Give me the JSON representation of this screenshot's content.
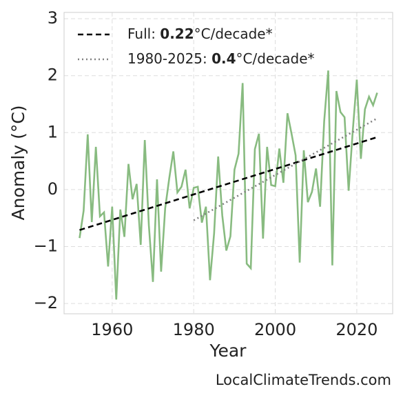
{
  "chart_data": {
    "type": "line",
    "xlabel": "Year",
    "ylabel": "Anomaly (°C)",
    "source": "LocalClimateTrends.com",
    "x": [
      1952,
      1953,
      1954,
      1955,
      1956,
      1957,
      1958,
      1959,
      1960,
      1961,
      1962,
      1963,
      1964,
      1965,
      1966,
      1967,
      1968,
      1969,
      1970,
      1971,
      1972,
      1973,
      1974,
      1975,
      1976,
      1977,
      1978,
      1979,
      1980,
      1981,
      1982,
      1983,
      1984,
      1985,
      1986,
      1987,
      1988,
      1989,
      1990,
      1991,
      1992,
      1993,
      1994,
      1995,
      1996,
      1997,
      1998,
      1999,
      2000,
      2001,
      2002,
      2003,
      2004,
      2005,
      2006,
      2007,
      2008,
      2009,
      2010,
      2011,
      2012,
      2013,
      2014,
      2015,
      2016,
      2017,
      2018,
      2019,
      2020,
      2021,
      2022,
      2023,
      2024,
      2025
    ],
    "series": [
      {
        "name": "Anomaly",
        "color": "#88bb80",
        "style": "solid",
        "values": [
          -0.85,
          -0.37,
          0.97,
          -0.57,
          0.75,
          -0.47,
          -0.4,
          -1.35,
          -0.3,
          -1.93,
          -0.35,
          -0.83,
          0.45,
          -0.17,
          0.1,
          -0.97,
          0.87,
          -0.63,
          -1.62,
          0.18,
          -1.44,
          -0.33,
          0.2,
          0.67,
          -0.05,
          0.05,
          0.35,
          -0.33,
          0.03,
          0.05,
          -0.58,
          -0.3,
          -1.59,
          -0.77,
          0.58,
          -0.45,
          -1.07,
          -0.82,
          0.35,
          0.63,
          1.87,
          -1.3,
          -1.38,
          0.71,
          0.98,
          -0.86,
          0.75,
          0.08,
          0.06,
          0.72,
          0.12,
          1.34,
          0.98,
          0.6,
          -1.28,
          0.69,
          -0.22,
          -0.04,
          0.37,
          -0.3,
          1.2,
          2.09,
          -1.33,
          1.73,
          1.36,
          1.27,
          -0.02,
          1.02,
          1.93,
          0.54,
          1.41,
          1.63,
          1.48,
          1.7
        ]
      }
    ],
    "trends": [
      {
        "legend": [
          "Full: ",
          "0.22",
          "°C/decade*"
        ],
        "color": "#000000",
        "style": "dashed",
        "x": [
          1952,
          2025
        ],
        "values": [
          -0.71,
          0.92
        ]
      },
      {
        "legend": [
          "1980-2025: ",
          "0.4",
          "°C/decade*"
        ],
        "color": "#808080",
        "style": "dotted",
        "x": [
          1980,
          2025
        ],
        "values": [
          -0.54,
          1.25
        ]
      }
    ],
    "xlim": [
      1948.2,
      2028.8
    ],
    "ylim": [
      -2.18,
      3.11
    ],
    "xticks": [
      1960,
      1980,
      2000,
      2020
    ],
    "yticks": [
      {
        "value": -2,
        "label": "−2"
      },
      {
        "value": -1,
        "label": "−1"
      },
      0,
      1,
      2,
      3
    ],
    "grid": true,
    "legend_position": "upper left"
  }
}
